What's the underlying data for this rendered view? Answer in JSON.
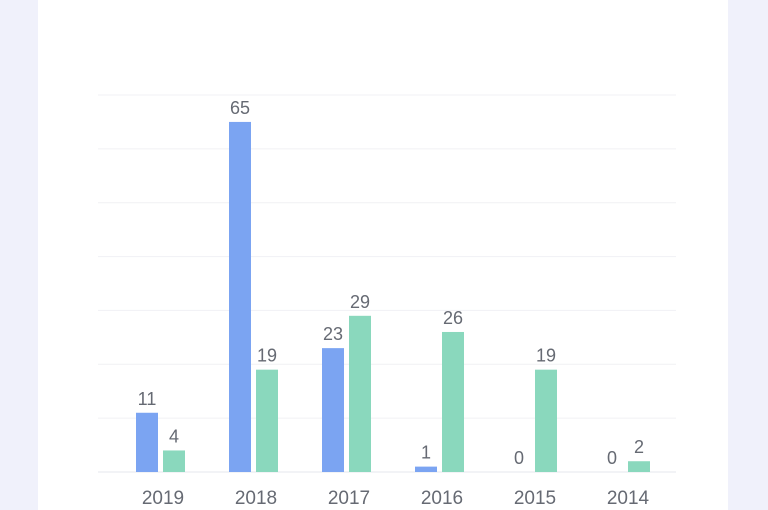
{
  "chart_data": {
    "type": "bar",
    "categories": [
      "2019",
      "2018",
      "2017",
      "2016",
      "2015",
      "2014"
    ],
    "series": [
      {
        "values": [
          11,
          65,
          23,
          1,
          0,
          0
        ]
      },
      {
        "values": [
          4,
          19,
          29,
          26,
          19,
          2
        ]
      }
    ],
    "ylim": [
      0,
      70
    ],
    "grid": true,
    "legend": "none",
    "data_labels": true
  },
  "colors": {
    "series_1": "#7ba4f2",
    "series_2": "#8ad8bd",
    "grid": "#f0f1f4",
    "axis": "#e6e7ec"
  }
}
